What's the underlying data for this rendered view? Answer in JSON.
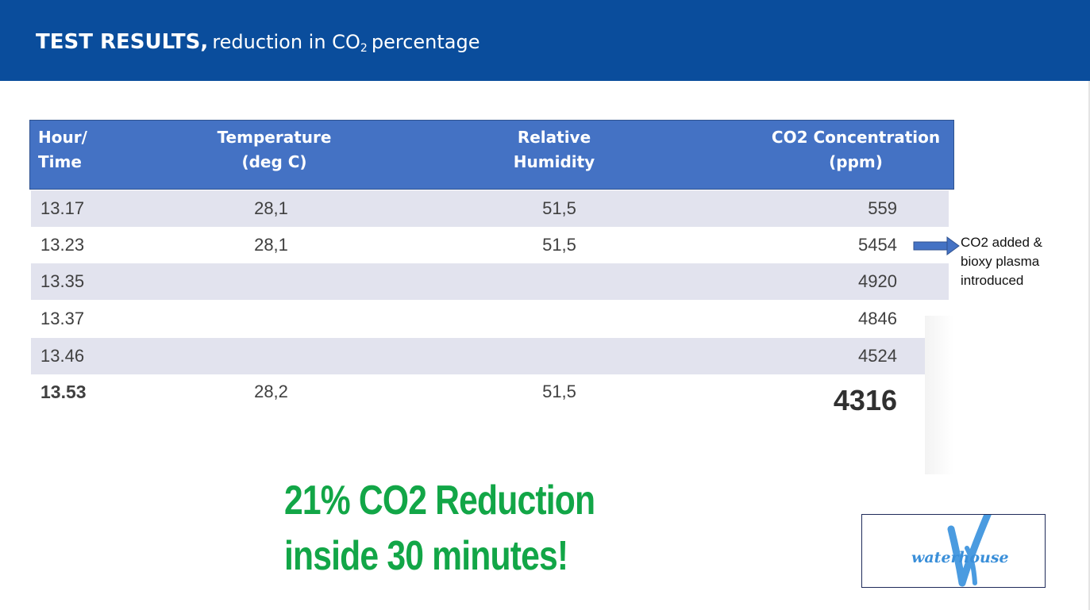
{
  "header": {
    "title_bold": "TEST RESULTS,",
    "title_rest": "reduction in CO",
    "title_subscript": "2",
    "title_tail": "percentage"
  },
  "table": {
    "columns": [
      [
        "Hour/",
        "Time"
      ],
      [
        "Temperature",
        "(deg C)"
      ],
      [
        "Relative",
        "Humidity"
      ],
      [
        "CO2 Concentration",
        "(ppm)"
      ]
    ],
    "rows": [
      {
        "time": "13.17",
        "temp": "28,1",
        "humidity": "51,5",
        "co2": "559"
      },
      {
        "time": "13.23",
        "temp": "28,1",
        "humidity": "51,5",
        "co2": "5454"
      },
      {
        "time": "13.35",
        "temp": "",
        "humidity": "",
        "co2": "4920"
      },
      {
        "time": "13.37",
        "temp": "",
        "humidity": "",
        "co2": "4846"
      },
      {
        "time": "13.46",
        "temp": "",
        "humidity": "",
        "co2": "4524"
      },
      {
        "time": "13.53",
        "temp": "28,2",
        "humidity": "51,5",
        "co2": "4316"
      }
    ]
  },
  "annotation": {
    "lines": [
      "CO2 added &",
      "bioxy plasma",
      "introduced"
    ]
  },
  "callout": {
    "line1": "21% CO2 Reduction",
    "line2": "inside 30 minutes!"
  },
  "logo": {
    "text": "waterhouse"
  },
  "colors": {
    "header": "#0a4d9c",
    "table_header": "#4472c4",
    "row_shade": "#e2e3ee",
    "callout": "#12a647",
    "logo": "#3a8fd9"
  }
}
